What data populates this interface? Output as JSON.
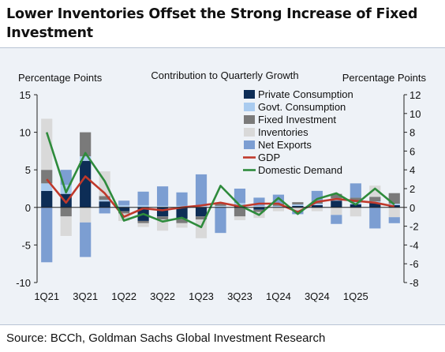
{
  "title": "Lower Inventories Offset the Strong Increase of Fixed Investment",
  "source": "Source: BCCh, Goldman Sachs Global Investment Research",
  "chart_data": {
    "type": "bar",
    "title": "Contribution to Quarterly Growth",
    "ylabel_left": "Percentage Points",
    "ylabel_right": "Percentage Points",
    "ylim_left": [
      -10,
      15
    ],
    "ylim_right": [
      -8,
      12
    ],
    "yticks_left": [
      -10,
      -5,
      0,
      5,
      10,
      15
    ],
    "yticks_right": [
      -8,
      -6,
      -4,
      -2,
      0,
      2,
      4,
      6,
      8,
      10,
      12
    ],
    "x_tick_labels": [
      "1Q21",
      "3Q21",
      "1Q22",
      "3Q22",
      "1Q23",
      "3Q23",
      "1Q24",
      "3Q24",
      "1Q25"
    ],
    "categories": [
      "1Q21",
      "2Q21",
      "3Q21",
      "4Q21",
      "1Q22",
      "2Q22",
      "3Q22",
      "4Q22",
      "1Q23",
      "2Q23",
      "3Q23",
      "4Q23",
      "1Q24",
      "2Q24",
      "3Q24",
      "4Q24",
      "1Q25",
      "2Q25",
      "3Q25"
    ],
    "stacked_series": [
      {
        "name": "Private Consumption",
        "color": "#0d2d56",
        "values": [
          2.2,
          1.8,
          6.2,
          0.8,
          -0.5,
          -1.8,
          -1.2,
          -1.5,
          -1.2,
          0.0,
          0.3,
          -0.3,
          0.0,
          0.2,
          0.3,
          0.9,
          0.4,
          0.6,
          0.3
        ]
      },
      {
        "name": "Govt. Consumption",
        "color": "#a9cbef",
        "values": [
          1.0,
          1.2,
          0.6,
          0.2,
          0.3,
          0.3,
          0.2,
          0.2,
          0.2,
          0.2,
          0.3,
          0.2,
          0.2,
          0.2,
          0.2,
          0.3,
          0.3,
          0.2,
          0.2
        ]
      },
      {
        "name": "Fixed Investment",
        "color": "#7a7a7a",
        "values": [
          1.8,
          -1.2,
          3.2,
          0.5,
          -0.3,
          -0.3,
          -0.4,
          -0.6,
          -0.4,
          0.3,
          -1.2,
          -0.3,
          0.3,
          0.3,
          0.3,
          0.6,
          0.6,
          0.6,
          1.4
        ]
      },
      {
        "name": "Inventories",
        "color": "#d9d9d9",
        "values": [
          6.8,
          -2.6,
          -2.0,
          3.3,
          -1.0,
          -0.5,
          -1.5,
          -0.6,
          -2.5,
          0.0,
          -0.5,
          -0.8,
          -0.5,
          -0.4,
          -0.5,
          -1.0,
          -1.2,
          1.5,
          -1.3
        ]
      },
      {
        "name": "Net Exports",
        "color": "#7c9ed2",
        "values": [
          -7.3,
          2.0,
          -4.6,
          -0.8,
          0.6,
          1.8,
          2.6,
          1.8,
          4.2,
          -3.4,
          1.9,
          1.1,
          1.2,
          -0.5,
          1.4,
          -1.2,
          1.9,
          -2.8,
          -0.8
        ]
      }
    ],
    "line_series": [
      {
        "name": "GDP",
        "color": "#c0392b",
        "axis": "right",
        "values": [
          3.0,
          0.5,
          3.3,
          1.5,
          -1.0,
          -0.1,
          -0.3,
          0.0,
          0.2,
          0.5,
          0.1,
          0.4,
          0.4,
          -0.5,
          0.6,
          0.9,
          0.7,
          0.5,
          0.1
        ]
      },
      {
        "name": "Domestic Demand",
        "color": "#2e8b3c",
        "axis": "right",
        "values": [
          8.0,
          1.6,
          5.8,
          2.8,
          -1.4,
          -0.7,
          -1.5,
          -1.1,
          -2.1,
          2.3,
          0.2,
          -0.8,
          1.0,
          -0.7,
          0.9,
          1.5,
          0.3,
          2.0,
          0.3
        ]
      }
    ],
    "legend_position": "top-right",
    "grid": false
  }
}
